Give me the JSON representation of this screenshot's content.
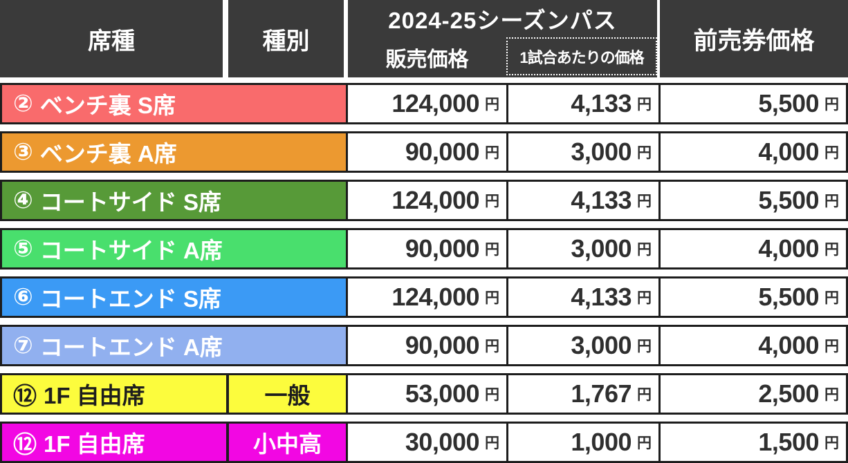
{
  "table": {
    "header": {
      "seat_type": "席種",
      "category": "種別",
      "season_pass_group": "2024-25シーズンパス",
      "season_pass_sales": "販売価格",
      "season_pass_per_game": "1試合あたりの価格",
      "advance_ticket": "前売券価格"
    },
    "currency_suffix": "円",
    "rows": [
      {
        "number": "②",
        "seat": "ベンチ裏 S席",
        "category": "",
        "bg": "#f96b6c",
        "text": "#ffffff",
        "sales_price": "124,000",
        "per_game_price": "4,133",
        "advance_price": "5,500"
      },
      {
        "number": "③",
        "seat": "ベンチ裏 A席",
        "category": "",
        "bg": "#ec9930",
        "text": "#ffffff",
        "sales_price": "90,000",
        "per_game_price": "3,000",
        "advance_price": "4,000"
      },
      {
        "number": "④",
        "seat": "コートサイド S席",
        "category": "",
        "bg": "#579a38",
        "text": "#ffffff",
        "sales_price": "124,000",
        "per_game_price": "4,133",
        "advance_price": "5,500"
      },
      {
        "number": "⑤",
        "seat": "コートサイド A席",
        "category": "",
        "bg": "#49df6d",
        "text": "#ffffff",
        "sales_price": "90,000",
        "per_game_price": "3,000",
        "advance_price": "4,000"
      },
      {
        "number": "⑥",
        "seat": "コートエンド S席",
        "category": "",
        "bg": "#3b9af5",
        "text": "#ffffff",
        "sales_price": "124,000",
        "per_game_price": "4,133",
        "advance_price": "5,500"
      },
      {
        "number": "⑦",
        "seat": "コートエンド A席",
        "category": "",
        "bg": "#91b0ef",
        "text": "#ffffff",
        "sales_price": "90,000",
        "per_game_price": "3,000",
        "advance_price": "4,000"
      },
      {
        "number": "⑫",
        "seat": "1F 自由席",
        "category": "一般",
        "bg": "#fcfc3d",
        "text": "#1d1d1d",
        "sales_price": "53,000",
        "per_game_price": "1,767",
        "advance_price": "2,500"
      },
      {
        "number": "⑫",
        "seat": "1F 自由席",
        "category": "小中高",
        "bg": "#f207e3",
        "text": "#ffffff",
        "sales_price": "30,000",
        "per_game_price": "1,000",
        "advance_price": "1,500"
      }
    ]
  },
  "colors": {
    "header_bg": "#3a3a3a",
    "header_text": "#ffffff",
    "border": "#1d1d1d",
    "price_text": "#2f2f2f",
    "cell_bg": "#ffffff"
  }
}
